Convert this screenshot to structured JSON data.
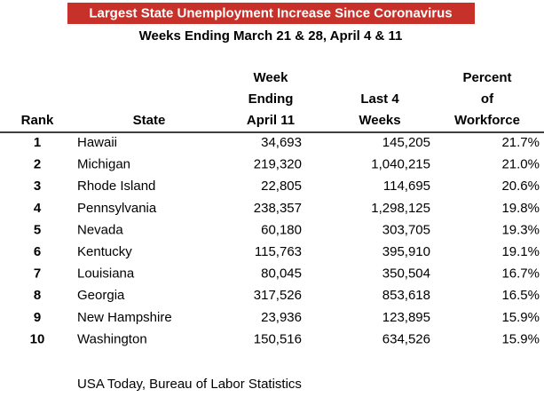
{
  "header": {
    "title": "Largest State Unemployment Increase Since Coronavirus",
    "subtitle": "Weeks Ending March 21 & 28, April 4 & 11"
  },
  "table": {
    "columns": [
      [
        "Rank"
      ],
      [
        "State"
      ],
      [
        "Week",
        "Ending",
        "April 11"
      ],
      [
        "Last 4",
        "Weeks"
      ],
      [
        "Percent",
        "of",
        "Workforce"
      ]
    ],
    "rows": [
      [
        "1",
        "Hawaii",
        "34,693",
        "145,205",
        "21.7%"
      ],
      [
        "2",
        "Michigan",
        "219,320",
        "1,040,215",
        "21.0%"
      ],
      [
        "3",
        "Rhode Island",
        "22,805",
        "114,695",
        "20.6%"
      ],
      [
        "4",
        "Pennsylvania",
        "238,357",
        "1,298,125",
        "19.8%"
      ],
      [
        "5",
        "Nevada",
        "60,180",
        "303,705",
        "19.3%"
      ],
      [
        "6",
        "Kentucky",
        "115,763",
        "395,910",
        "19.1%"
      ],
      [
        "7",
        "Louisiana",
        "80,045",
        "350,504",
        "16.7%"
      ],
      [
        "8",
        "Georgia",
        "317,526",
        "853,618",
        "16.5%"
      ],
      [
        "9",
        "New Hampshire",
        "23,936",
        "123,895",
        "15.9%"
      ],
      [
        "10",
        "Washington",
        "150,516",
        "634,526",
        "15.9%"
      ]
    ]
  },
  "source": "USA Today, Bureau of Labor Statistics"
}
